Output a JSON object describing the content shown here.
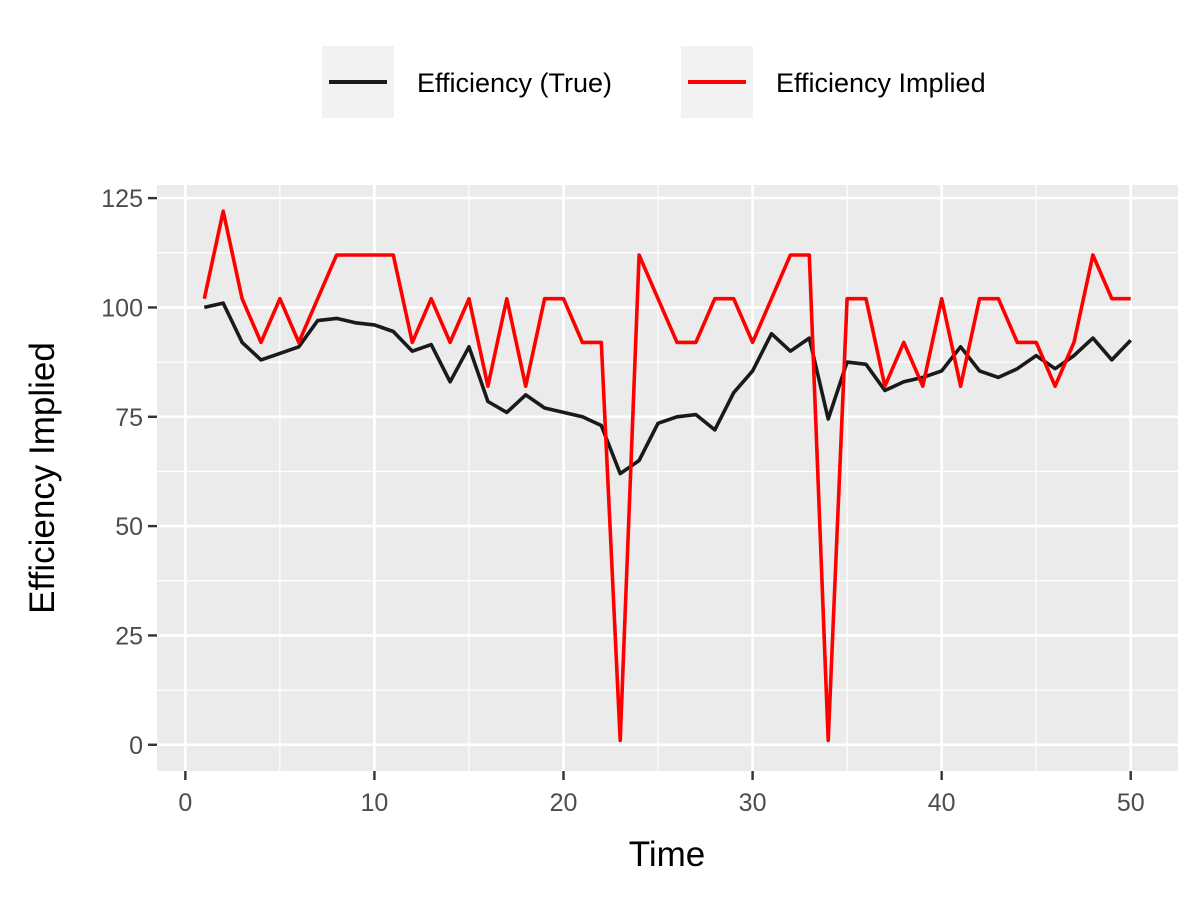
{
  "chart_data": {
    "type": "line",
    "xlabel": "Time",
    "ylabel": "Efficiency Implied",
    "xlim": [
      -1.5,
      52.5
    ],
    "ylim": [
      -6,
      128
    ],
    "x_ticks": [
      0,
      10,
      20,
      30,
      40,
      50
    ],
    "y_ticks": [
      0,
      25,
      50,
      75,
      100,
      125
    ],
    "x_minor": [
      5,
      15,
      25,
      35,
      45
    ],
    "y_minor": [
      12.5,
      37.5,
      62.5,
      87.5,
      112.5
    ],
    "grid": true,
    "legend_position": "top",
    "panel_color": "#ebebeb",
    "x": [
      1,
      2,
      3,
      4,
      5,
      6,
      7,
      8,
      9,
      10,
      11,
      12,
      13,
      14,
      15,
      16,
      17,
      18,
      19,
      20,
      21,
      22,
      23,
      24,
      25,
      26,
      27,
      28,
      29,
      30,
      31,
      32,
      33,
      34,
      35,
      36,
      37,
      38,
      39,
      40,
      41,
      42,
      43,
      44,
      45,
      46,
      47,
      48,
      49,
      50
    ],
    "series": [
      {
        "name": "Efficiency (True)",
        "color": "#1a1a1a",
        "values": [
          100,
          101,
          92,
          88,
          89.5,
          91,
          97,
          97.5,
          96.5,
          96,
          94.5,
          90,
          91.5,
          83,
          91,
          78.5,
          76,
          80,
          77,
          76,
          75,
          73,
          62,
          65,
          73.5,
          75,
          75.5,
          72,
          80.5,
          85.5,
          94,
          90,
          93,
          74.5,
          87.5,
          87,
          81,
          83,
          84,
          85.5,
          91,
          85.5,
          84,
          86,
          89,
          86,
          89,
          93,
          88,
          92.5
        ]
      },
      {
        "name": "Efficiency Implied",
        "color": "#ff0000",
        "values": [
          102,
          122,
          102,
          92,
          102,
          92,
          102,
          112,
          112,
          112,
          112,
          92,
          102,
          92,
          102,
          82,
          102,
          82,
          102,
          102,
          92,
          92,
          1,
          112,
          102,
          92,
          92,
          102,
          102,
          92,
          102,
          112,
          112,
          1,
          102,
          102,
          82,
          92,
          82,
          102,
          82,
          102,
          102,
          92,
          92,
          82,
          92,
          112,
          102,
          102
        ]
      }
    ]
  }
}
